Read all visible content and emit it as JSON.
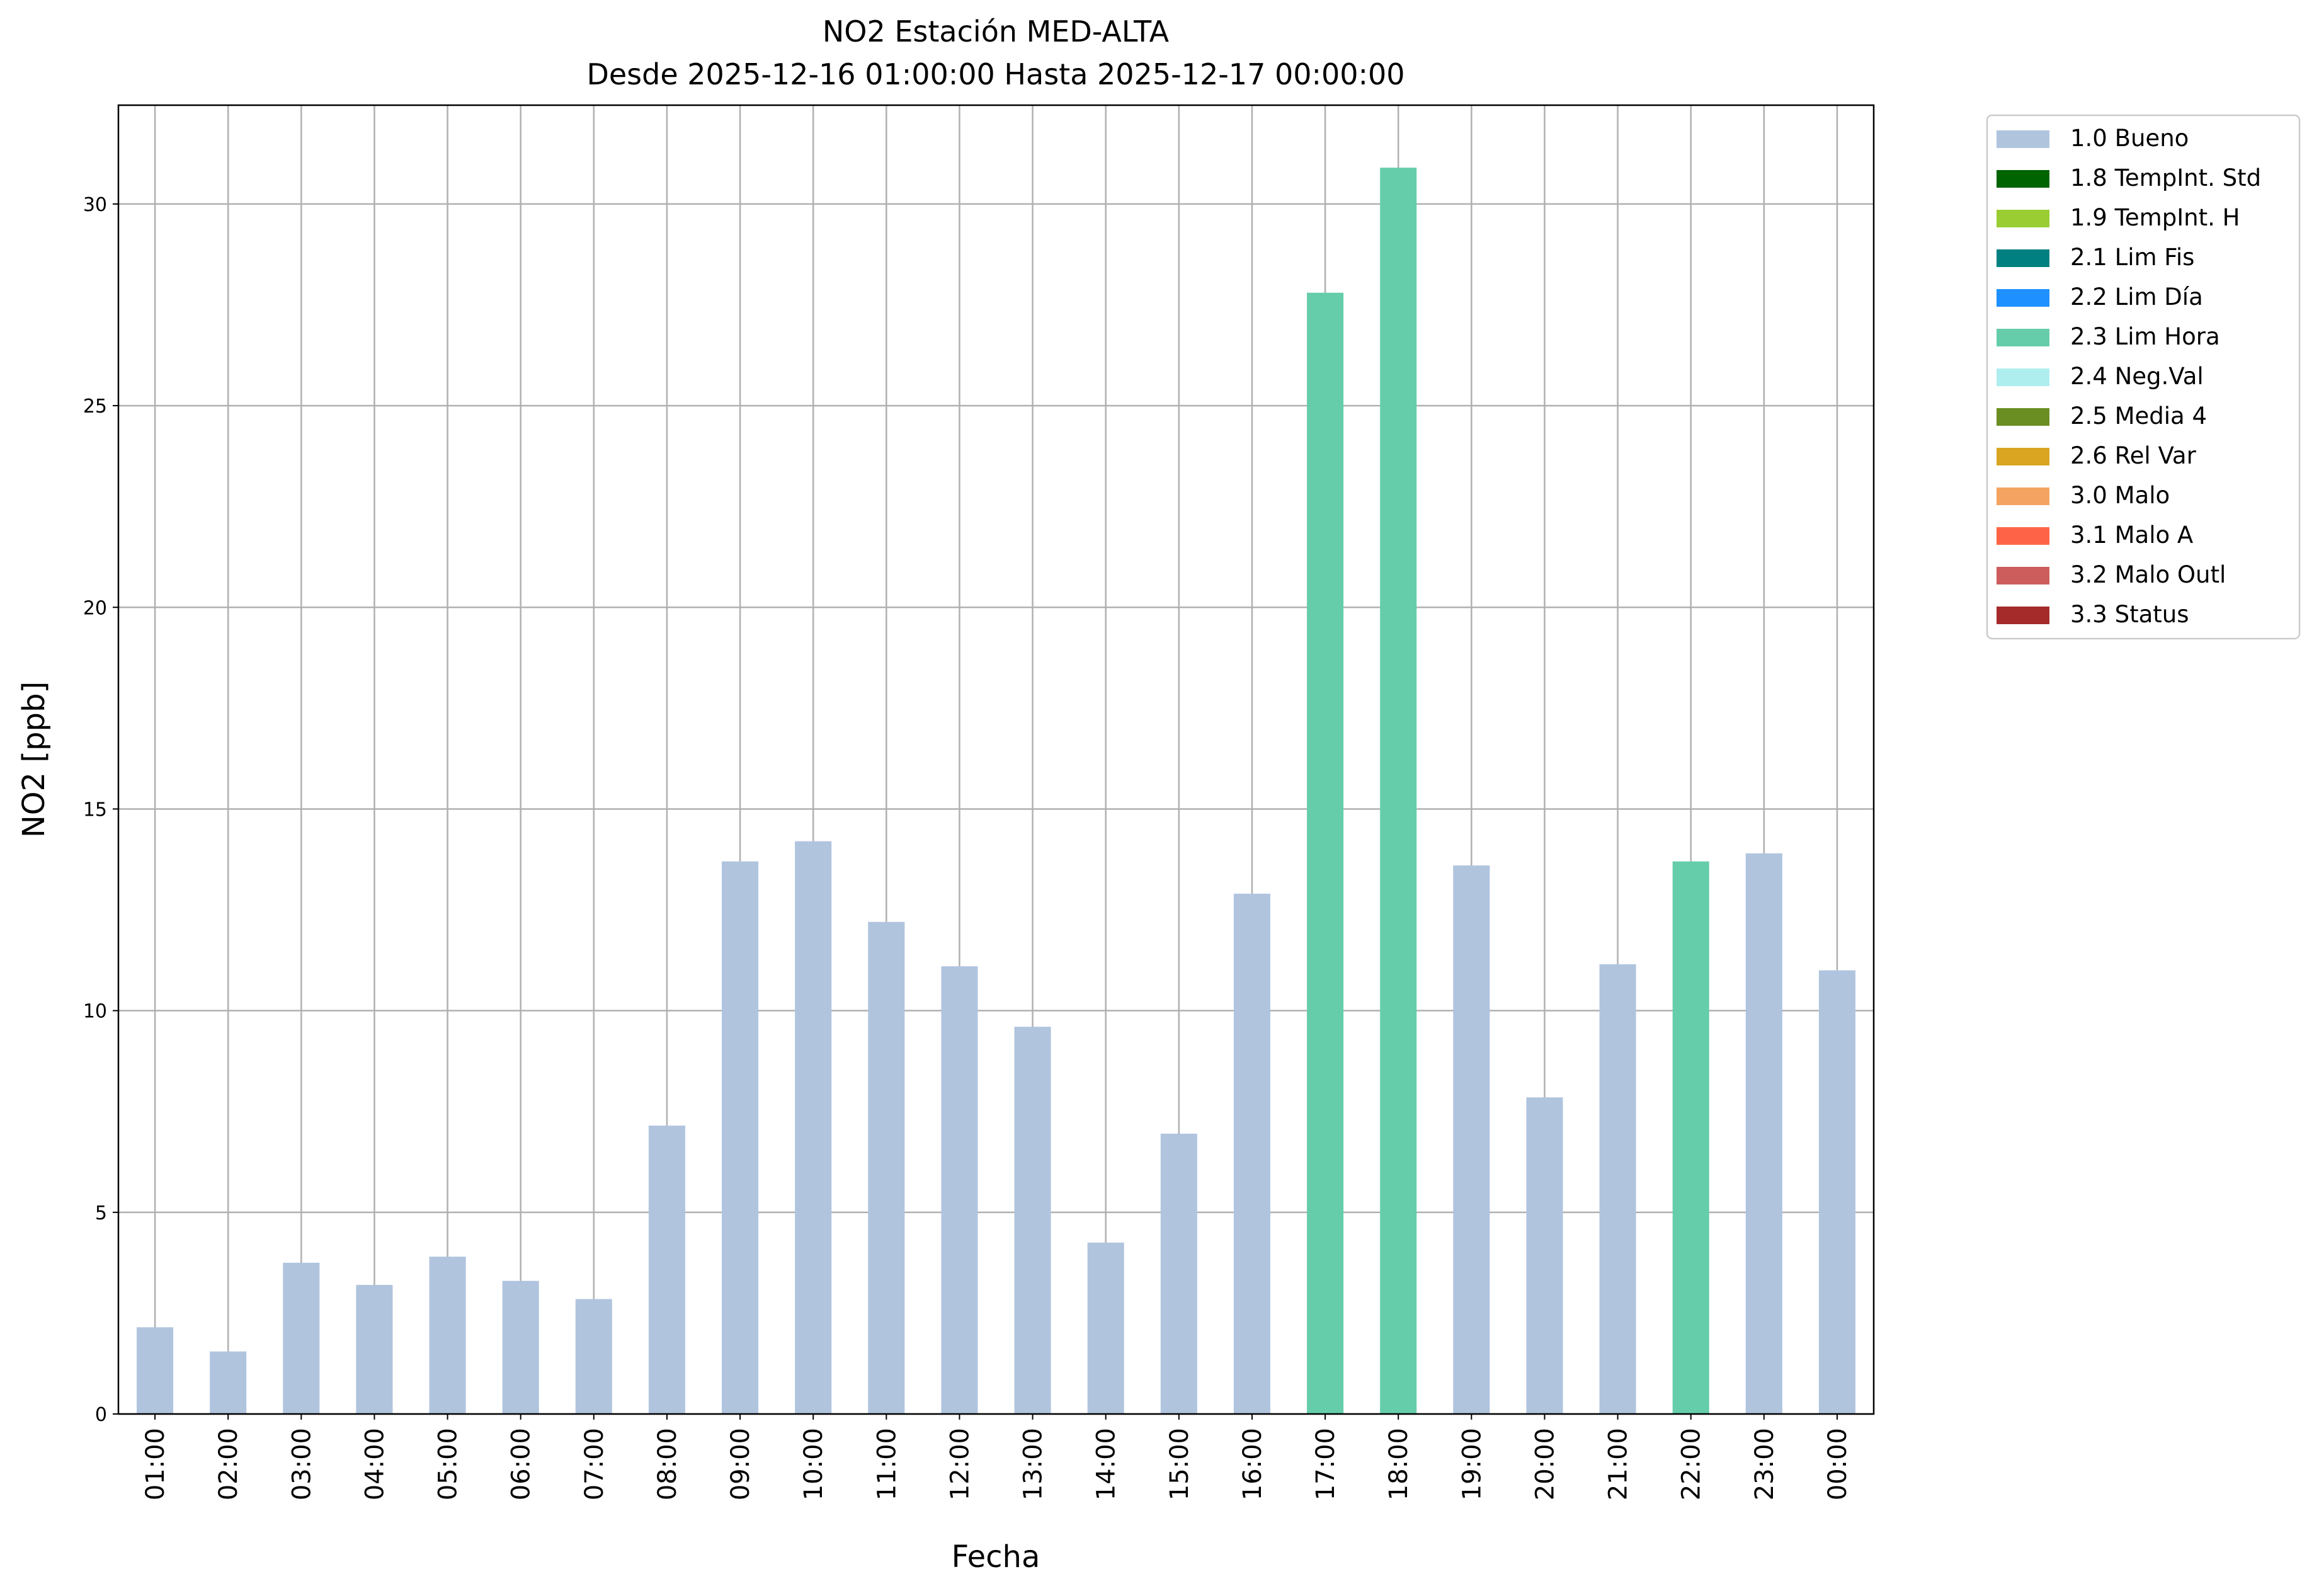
{
  "chart_data": {
    "type": "stacked-bar",
    "title": "NO2 Estación MED-ALTA",
    "subtitle": "Desde 2025-12-16 01:00:00 Hasta 2025-12-17 00:00:00",
    "x_label": "Fecha",
    "y_label": "NO2 [ppb]",
    "categories": [
      "01:00",
      "02:00",
      "03:00",
      "04:00",
      "05:00",
      "06:00",
      "07:00",
      "08:00",
      "09:00",
      "10:00",
      "11:00",
      "12:00",
      "13:00",
      "14:00",
      "15:00",
      "16:00",
      "17:00",
      "18:00",
      "19:00",
      "20:00",
      "21:00",
      "22:00",
      "23:00",
      "00:00"
    ],
    "ylim": [
      0,
      32.45
    ],
    "yticks": [
      0,
      5,
      10,
      15,
      20,
      25,
      30
    ],
    "grid": true,
    "legend": "outside-upper-right",
    "series": [
      {
        "name": "1.0 Bueno",
        "color": "#b0c4de",
        "values": [
          2.15,
          1.55,
          3.75,
          3.2,
          3.9,
          3.3,
          2.85,
          7.15,
          13.7,
          14.2,
          12.2,
          11.1,
          9.6,
          4.25,
          6.95,
          12.9,
          null,
          null,
          13.6,
          7.85,
          11.15,
          null,
          13.9,
          11.0
        ]
      },
      {
        "name": "1.8 TempInt. Std",
        "color": "#006400",
        "values": [
          null,
          null,
          null,
          null,
          null,
          null,
          null,
          null,
          null,
          null,
          null,
          null,
          null,
          null,
          null,
          null,
          null,
          null,
          null,
          null,
          null,
          null,
          null,
          null
        ]
      },
      {
        "name": "1.9 TempInt. H",
        "color": "#9acd32",
        "values": [
          null,
          null,
          null,
          null,
          null,
          null,
          null,
          null,
          null,
          null,
          null,
          null,
          null,
          null,
          null,
          null,
          null,
          null,
          null,
          null,
          null,
          null,
          null,
          null
        ]
      },
      {
        "name": "2.1 Lim Fis",
        "color": "#008080",
        "values": [
          null,
          null,
          null,
          null,
          null,
          null,
          null,
          null,
          null,
          null,
          null,
          null,
          null,
          null,
          null,
          null,
          null,
          null,
          null,
          null,
          null,
          null,
          null,
          null
        ]
      },
      {
        "name": "2.2 Lim Día",
        "color": "#1e90ff",
        "values": [
          null,
          null,
          null,
          null,
          null,
          null,
          null,
          null,
          null,
          null,
          null,
          null,
          null,
          null,
          null,
          null,
          null,
          null,
          null,
          null,
          null,
          null,
          null,
          null
        ]
      },
      {
        "name": "2.3 Lim Hora",
        "color": "#66cdaa",
        "values": [
          null,
          null,
          null,
          null,
          null,
          null,
          null,
          null,
          null,
          null,
          null,
          null,
          null,
          null,
          null,
          null,
          27.8,
          30.9,
          null,
          null,
          null,
          13.7,
          null,
          null
        ]
      },
      {
        "name": "2.4 Neg.Val",
        "color": "#afeeee",
        "values": [
          null,
          null,
          null,
          null,
          null,
          null,
          null,
          null,
          null,
          null,
          null,
          null,
          null,
          null,
          null,
          null,
          null,
          null,
          null,
          null,
          null,
          null,
          null,
          null
        ]
      },
      {
        "name": "2.5 Media 4",
        "color": "#6b8e23",
        "values": [
          null,
          null,
          null,
          null,
          null,
          null,
          null,
          null,
          null,
          null,
          null,
          null,
          null,
          null,
          null,
          null,
          null,
          null,
          null,
          null,
          null,
          null,
          null,
          null
        ]
      },
      {
        "name": "2.6 Rel Var",
        "color": "#daa520",
        "values": [
          null,
          null,
          null,
          null,
          null,
          null,
          null,
          null,
          null,
          null,
          null,
          null,
          null,
          null,
          null,
          null,
          null,
          null,
          null,
          null,
          null,
          null,
          null,
          null
        ]
      },
      {
        "name": "3.0 Malo",
        "color": "#f4a460",
        "values": [
          null,
          null,
          null,
          null,
          null,
          null,
          null,
          null,
          null,
          null,
          null,
          null,
          null,
          null,
          null,
          null,
          null,
          null,
          null,
          null,
          null,
          null,
          null,
          null
        ]
      },
      {
        "name": "3.1 Malo A",
        "color": "#ff6347",
        "values": [
          null,
          null,
          null,
          null,
          null,
          null,
          null,
          null,
          null,
          null,
          null,
          null,
          null,
          null,
          null,
          null,
          null,
          null,
          null,
          null,
          null,
          null,
          null,
          null
        ]
      },
      {
        "name": "3.2 Malo Outl",
        "color": "#cd5c5c",
        "values": [
          null,
          null,
          null,
          null,
          null,
          null,
          null,
          null,
          null,
          null,
          null,
          null,
          null,
          null,
          null,
          null,
          null,
          null,
          null,
          null,
          null,
          null,
          null,
          null
        ]
      },
      {
        "name": "3.3 Status",
        "color": "#a52a2a",
        "values": [
          null,
          null,
          null,
          null,
          null,
          null,
          null,
          null,
          null,
          null,
          null,
          null,
          null,
          null,
          null,
          null,
          null,
          null,
          null,
          null,
          null,
          null,
          null,
          null
        ]
      }
    ]
  }
}
